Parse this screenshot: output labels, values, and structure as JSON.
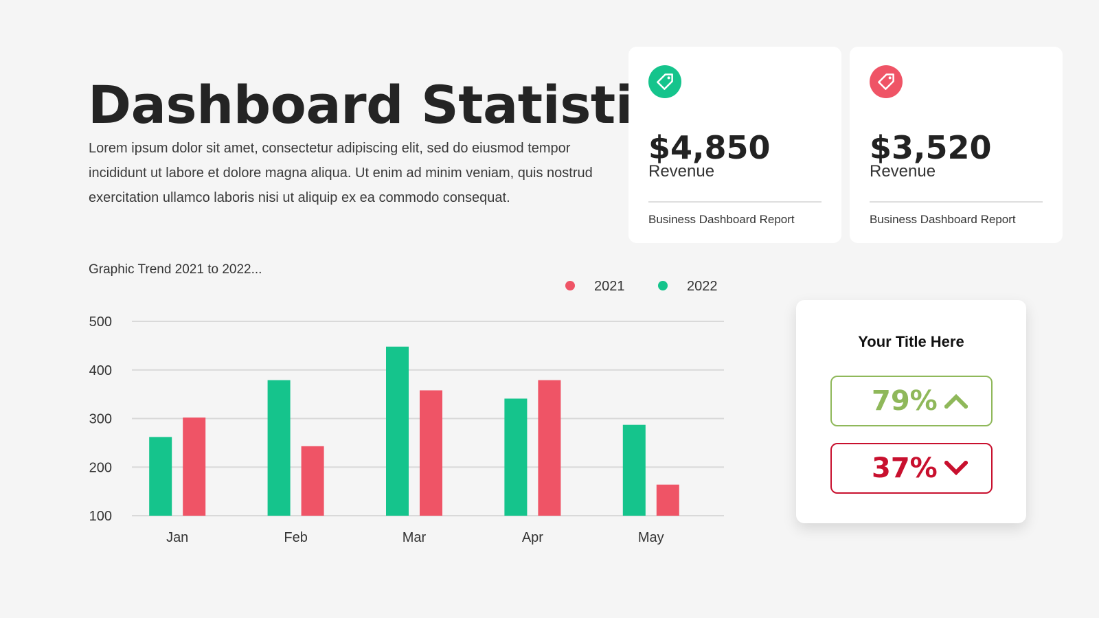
{
  "header": {
    "title": "Dashboard Statistic",
    "description": "Lorem ipsum dolor sit amet, consectetur adipiscing elit, sed do eiusmod tempor incididunt ut labore et dolore magna aliqua. Ut enim ad minim veniam, quis nostrud exercitation ullamco laboris nisi ut aliquip ex ea commodo consequat."
  },
  "cards": [
    {
      "icon": "price-tag-icon",
      "icon_color": "#15c48c",
      "amount": "$4,850",
      "label": "Revenue",
      "footer": "Business Dashboard Report"
    },
    {
      "icon": "price-tag-icon",
      "icon_color": "#ef5466",
      "amount": "$3,520",
      "label": "Revenue",
      "footer": "Business Dashboard Report"
    }
  ],
  "chart_caption": "Graphic Trend 2021 to 2022...",
  "chart_data": {
    "type": "bar",
    "categories": [
      "Jan",
      "Feb",
      "Mar",
      "Apr",
      "May"
    ],
    "series": [
      {
        "name": "2022",
        "color": "#15c48c",
        "values": [
          262,
          379,
          448,
          341,
          287
        ]
      },
      {
        "name": "2021",
        "color": "#ef5466",
        "values": [
          302,
          243,
          358,
          379,
          164
        ]
      }
    ],
    "legend_order": [
      "2021",
      "2022"
    ],
    "legend_position": "top-right",
    "ylim": [
      100,
      500
    ],
    "yticks": [
      100,
      200,
      300,
      400,
      500
    ],
    "grid": true
  },
  "kpi": {
    "title": "Your Title Here",
    "up": {
      "value": "79%",
      "color": "#8fb85a",
      "icon": "chevron-up-icon"
    },
    "down": {
      "value": "37%",
      "color": "#c8102e",
      "icon": "chevron-down-icon"
    }
  }
}
